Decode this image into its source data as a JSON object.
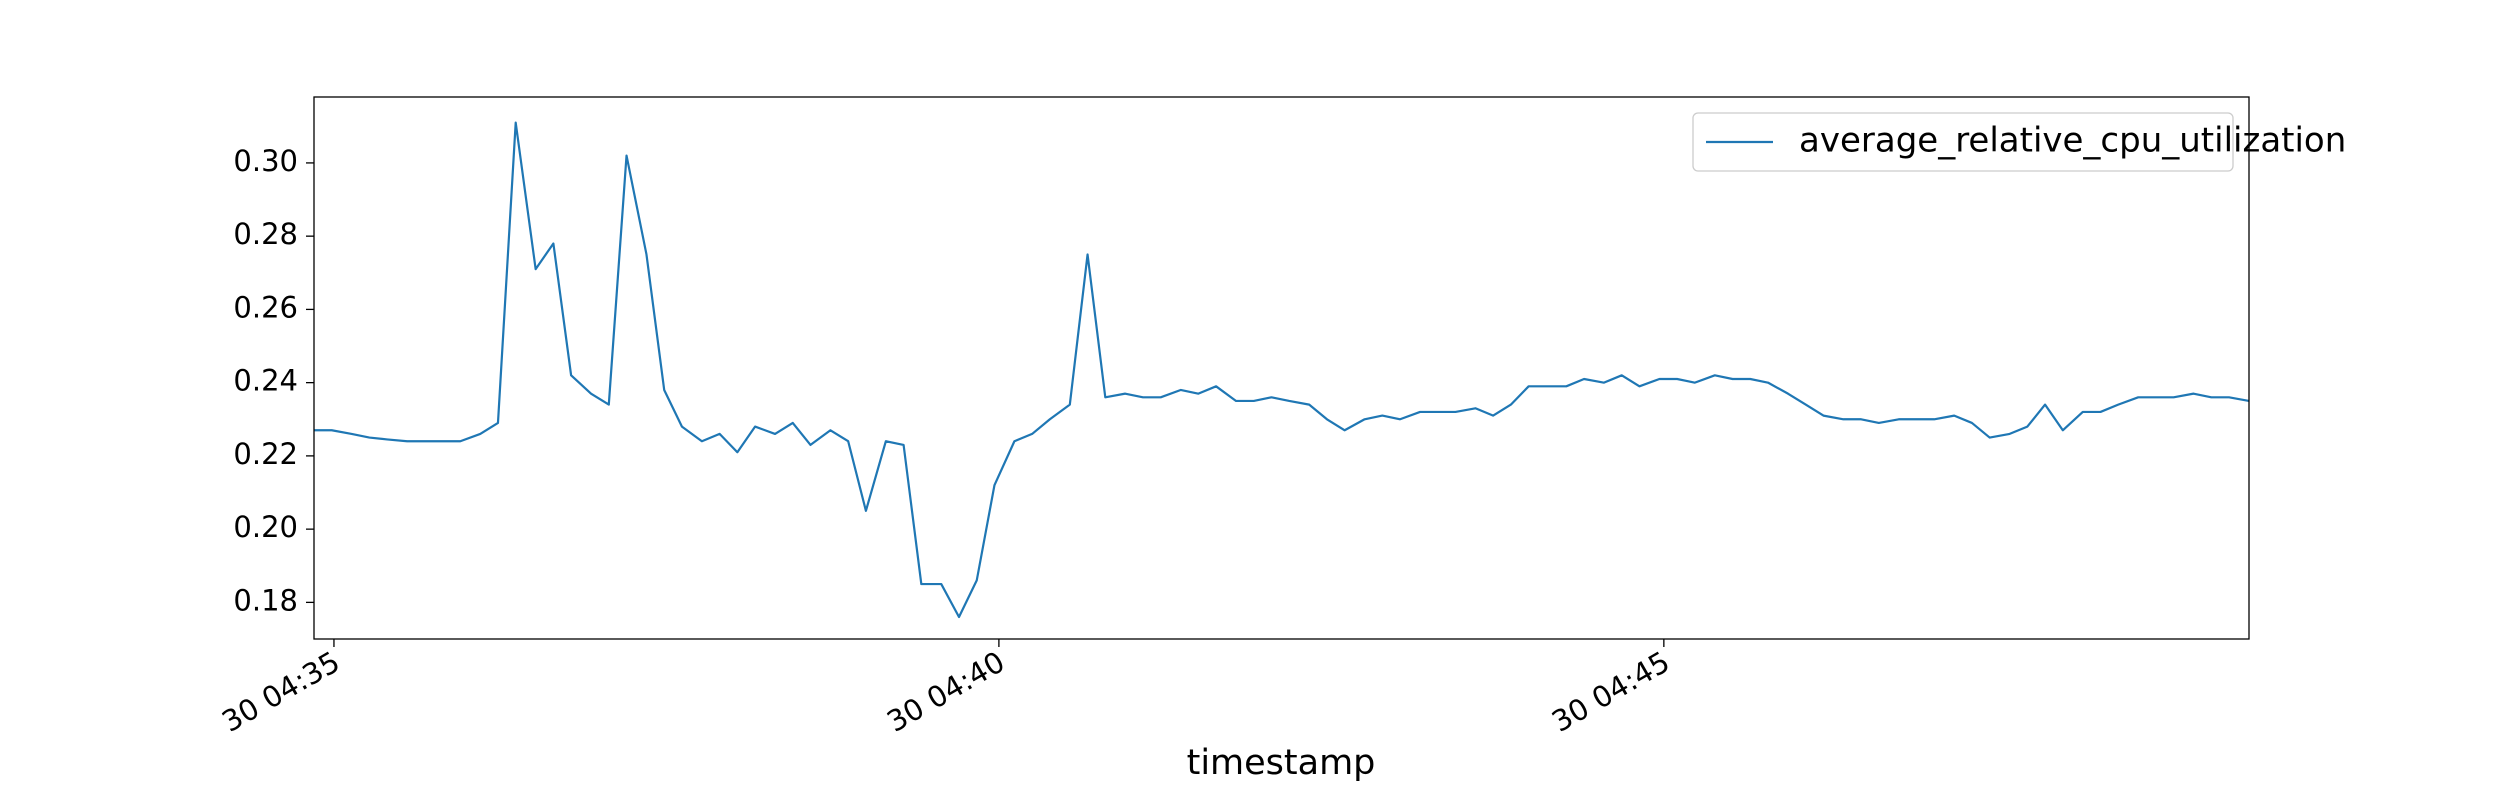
{
  "chart_data": {
    "type": "line",
    "xlabel": "timestamp",
    "x": [
      "30 04:34:51",
      "30 04:34:59",
      "30 04:35:08",
      "30 04:35:16",
      "30 04:35:24",
      "30 04:35:33",
      "30 04:35:41",
      "30 04:35:49",
      "30 04:35:57",
      "30 04:36:06",
      "30 04:36:14",
      "30 04:36:22",
      "30 04:36:31",
      "30 04:36:39",
      "30 04:36:47",
      "30 04:36:56",
      "30 04:37:04",
      "30 04:37:12",
      "30 04:37:21",
      "30 04:37:29",
      "30 04:37:37",
      "30 04:37:46",
      "30 04:37:54",
      "30 04:38:02",
      "30 04:38:10",
      "30 04:38:19",
      "30 04:38:27",
      "30 04:38:35",
      "30 04:38:44",
      "30 04:38:52",
      "30 04:39:00",
      "30 04:39:09",
      "30 04:39:17",
      "30 04:39:25",
      "30 04:39:34",
      "30 04:39:42",
      "30 04:39:50",
      "30 04:39:58",
      "30 04:40:07",
      "30 04:40:15",
      "30 04:40:23",
      "30 04:40:32",
      "30 04:40:40",
      "30 04:40:48",
      "30 04:40:57",
      "30 04:41:05",
      "30 04:41:13",
      "30 04:41:22",
      "30 04:41:30",
      "30 04:41:38",
      "30 04:41:47",
      "30 04:41:55",
      "30 04:42:03",
      "30 04:42:11",
      "30 04:42:20",
      "30 04:42:28",
      "30 04:42:36",
      "30 04:42:45",
      "30 04:42:53",
      "30 04:43:01",
      "30 04:43:10",
      "30 04:43:18",
      "30 04:43:26",
      "30 04:43:35",
      "30 04:43:43",
      "30 04:43:51",
      "30 04:43:59",
      "30 04:44:08",
      "30 04:44:16",
      "30 04:44:24",
      "30 04:44:33",
      "30 04:44:41",
      "30 04:44:49",
      "30 04:44:58",
      "30 04:45:06",
      "30 04:45:14",
      "30 04:45:23",
      "30 04:45:31",
      "30 04:45:39",
      "30 04:45:47",
      "30 04:45:56",
      "30 04:46:04",
      "30 04:46:12",
      "30 04:46:21",
      "30 04:46:29",
      "30 04:46:37",
      "30 04:46:46",
      "30 04:46:54",
      "30 04:47:02",
      "30 04:47:11",
      "30 04:47:19",
      "30 04:47:27",
      "30 04:47:36",
      "30 04:47:44",
      "30 04:47:52",
      "30 04:48:00",
      "30 04:48:09",
      "30 04:48:17",
      "30 04:48:25",
      "30 04:48:34",
      "30 04:48:42",
      "30 04:48:50",
      "30 04:48:59",
      "30 04:49:07",
      "30 04:49:15",
      "30 04:49:24"
    ],
    "series": [
      {
        "name": "average_relative_cpu_utilization",
        "color": "#1f77b4",
        "values": [
          0.227,
          0.227,
          0.226,
          0.225,
          0.2245,
          0.224,
          0.224,
          0.224,
          0.224,
          0.226,
          0.229,
          0.311,
          0.271,
          0.278,
          0.242,
          0.237,
          0.234,
          0.302,
          0.275,
          0.238,
          0.228,
          0.224,
          0.226,
          0.221,
          0.228,
          0.226,
          0.229,
          0.223,
          0.227,
          0.224,
          0.205,
          0.224,
          0.223,
          0.185,
          0.185,
          0.176,
          0.186,
          0.212,
          0.224,
          0.226,
          0.23,
          0.234,
          0.275,
          0.236,
          0.237,
          0.236,
          0.236,
          0.238,
          0.237,
          0.239,
          0.235,
          0.235,
          0.236,
          0.235,
          0.234,
          0.23,
          0.227,
          0.23,
          0.231,
          0.23,
          0.232,
          0.232,
          0.232,
          0.233,
          0.231,
          0.234,
          0.239,
          0.239,
          0.239,
          0.241,
          0.24,
          0.242,
          0.239,
          0.241,
          0.241,
          0.24,
          0.242,
          0.241,
          0.241,
          0.24,
          0.237,
          0.234,
          0.231,
          0.23,
          0.23,
          0.229,
          0.23,
          0.23,
          0.23,
          0.231,
          0.229,
          0.225,
          0.226,
          0.228,
          0.234,
          0.227,
          0.232,
          0.232,
          0.234,
          0.236,
          0.236,
          0.236,
          0.237,
          0.236,
          0.236,
          0.235
        ]
      }
    ],
    "xlim": [
      "30 04:34:51",
      "30 04:49:24"
    ],
    "xticks": [
      {
        "value": "30 04:35:00",
        "label": "30 04:35"
      },
      {
        "value": "30 04:40:00",
        "label": "30 04:40"
      },
      {
        "value": "30 04:45:00",
        "label": "30 04:45"
      }
    ],
    "ylim": [
      0.17,
      0.318
    ],
    "yticks": [
      0.18,
      {
        "value": 0.2,
        "label": "0.20"
      },
      0.22,
      0.24,
      0.26,
      0.28,
      {
        "value": 0.3,
        "label": "0.30"
      }
    ],
    "legend": "upper right"
  }
}
